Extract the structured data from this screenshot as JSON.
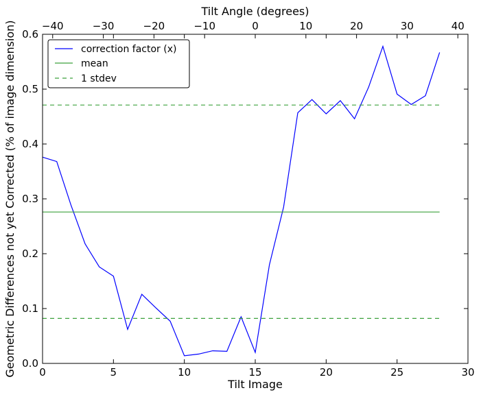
{
  "chart_data": {
    "type": "line",
    "xlabel": "Tilt Image",
    "ylabel": "Geometric Differences not yet Corrected (% of image dimension)",
    "top_xlabel": "Tilt Angle (degrees)",
    "xlim": [
      0,
      30
    ],
    "ylim": [
      0,
      0.6
    ],
    "top_xlim": [
      -42,
      42
    ],
    "xticks": [
      0,
      5,
      10,
      15,
      20,
      25,
      30
    ],
    "yticks": [
      0.0,
      0.1,
      0.2,
      0.3,
      0.4,
      0.5,
      0.6
    ],
    "top_xticks": [
      -40,
      -30,
      -20,
      -10,
      0,
      10,
      20,
      30,
      40
    ],
    "x_tick_labels": [
      "0",
      "5",
      "10",
      "15",
      "20",
      "25",
      "30"
    ],
    "y_tick_labels": [
      "0.0",
      "0.1",
      "0.2",
      "0.3",
      "0.4",
      "0.5",
      "0.6"
    ],
    "top_tick_labels": [
      "−40",
      "−30",
      "−20",
      "−10",
      "0",
      "10",
      "20",
      "30",
      "40"
    ],
    "grid": false,
    "legend_position": "top-left",
    "series": [
      {
        "name": "correction factor (x)",
        "color": "#0000ff",
        "style": "solid",
        "x": [
          0,
          1,
          2,
          3,
          4,
          5,
          6,
          7,
          8,
          9,
          10,
          11,
          12,
          13,
          14,
          15,
          16,
          17,
          18,
          19,
          20,
          21,
          22,
          23,
          24,
          25,
          26,
          27,
          28
        ],
        "values": [
          0.376,
          0.368,
          0.289,
          0.218,
          0.176,
          0.159,
          0.062,
          0.126,
          0.101,
          0.077,
          0.014,
          0.017,
          0.023,
          0.022,
          0.085,
          0.02,
          0.18,
          0.285,
          0.457,
          0.481,
          0.455,
          0.479,
          0.446,
          0.504,
          0.578,
          0.491,
          0.472,
          0.488,
          0.567
        ]
      },
      {
        "name": "mean",
        "color": "#3ca03c",
        "style": "solid",
        "x": [
          0,
          28
        ],
        "values": [
          0.276,
          0.276
        ]
      },
      {
        "name": "1 stdev",
        "color": "#3ca03c",
        "style": "dashed",
        "x": [
          0,
          28
        ],
        "values": [
          0.471,
          0.471
        ]
      },
      {
        "name": "",
        "color": "#3ca03c",
        "style": "dashed",
        "x": [
          0,
          28
        ],
        "values": [
          0.082,
          0.082
        ]
      }
    ]
  }
}
